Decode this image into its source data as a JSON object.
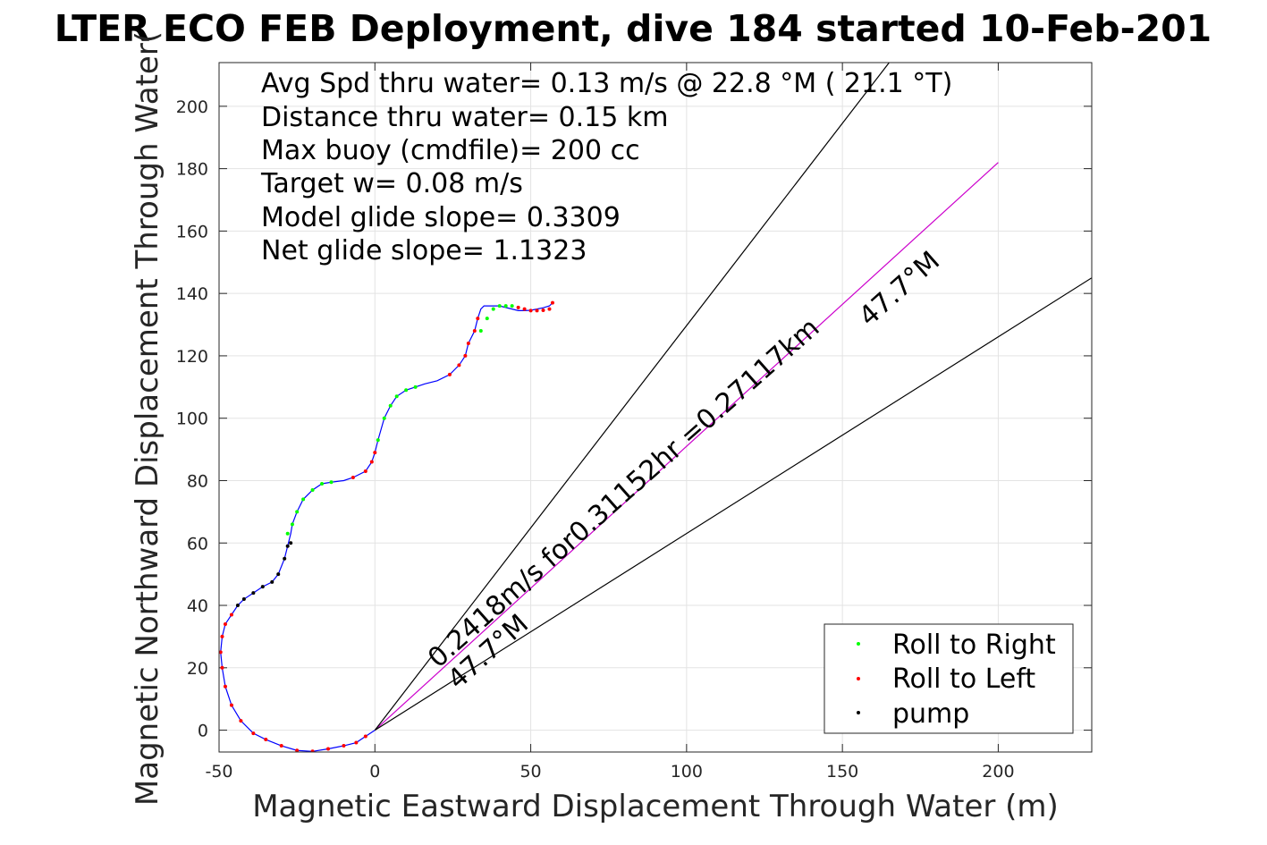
{
  "chart_data": {
    "type": "scatter",
    "title": "LTER ECO FEB Deployment, dive 184 started 10-Feb-201",
    "xlabel": "Magnetic Eastward Displacement Through Water (m)",
    "ylabel": "Magnetic Northward Displacement Through Water(",
    "xlim": [
      -50,
      230
    ],
    "ylim": [
      -7,
      214
    ],
    "xticks": [
      -50,
      0,
      50,
      100,
      150,
      200
    ],
    "yticks": [
      0,
      20,
      40,
      60,
      80,
      100,
      120,
      140,
      160,
      180,
      200
    ],
    "grid": true,
    "legend_position": "bottom-right",
    "annotations": [
      "Avg Spd thru water=  0.13 m/s @  22.8 °M ( 21.1 °T)",
      "Distance thru water=  0.15 km",
      "Max buoy (cmdfile)= 200 cc",
      "Target w= 0.08 m/s",
      "Model glide slope= 0.3309",
      "Net glide slope= 1.1323"
    ],
    "current_label": "0.2418m/s for0.31152hr =0.27117km",
    "heading_label_upper": "47.7°M",
    "heading_label_lower": "47.7°M",
    "track": {
      "x": [
        0,
        -3,
        -6,
        -10,
        -15,
        -20,
        -25,
        -30,
        -35,
        -39,
        -43,
        -46,
        -48,
        -49,
        -49.5,
        -49,
        -48,
        -46,
        -44,
        -42,
        -39,
        -36,
        -33,
        -31,
        -29,
        -28,
        -27,
        -26.5,
        -25,
        -23,
        -20,
        -17,
        -14,
        -10,
        -7,
        -3,
        -1,
        0,
        1,
        3,
        5,
        7,
        10,
        13,
        16,
        20,
        24,
        27,
        29,
        30,
        32,
        33,
        34,
        35,
        36,
        38,
        40,
        42,
        44,
        46,
        48,
        50,
        52,
        54,
        56,
        57
      ],
      "y": [
        0,
        -2,
        -4,
        -5,
        -6,
        -6.8,
        -6.5,
        -5,
        -3,
        -1,
        3,
        8,
        14,
        20,
        25,
        30,
        34,
        37,
        40,
        42,
        44,
        46,
        47.5,
        50,
        55,
        59,
        63,
        66,
        70,
        74,
        77,
        79,
        79.5,
        80,
        81,
        83,
        86,
        89,
        93,
        100,
        104,
        107,
        109,
        110,
        111,
        112,
        114,
        117,
        120,
        124,
        128,
        132,
        135,
        136,
        136,
        136,
        136,
        135.5,
        135,
        134.5,
        134.5,
        134.6,
        135,
        135.4,
        136,
        137
      ],
      "segment_colors": [
        "#0000ff"
      ]
    },
    "marker_series": [
      {
        "name": "Roll to Right",
        "color": "#00ff00",
        "x": [
          -28,
          -26.5,
          -25,
          -23,
          -20,
          -17,
          -14,
          1,
          3,
          5,
          7,
          10,
          13,
          34,
          36,
          38,
          40,
          42,
          44
        ],
        "y": [
          63,
          66,
          70,
          74,
          77,
          79,
          79.5,
          93,
          100,
          104,
          107,
          109,
          110,
          128,
          132,
          135,
          136,
          136,
          136
        ]
      },
      {
        "name": "Roll to Left",
        "color": "#ff0000",
        "x": [
          -3,
          -6,
          -10,
          -15,
          -20,
          -25,
          -30,
          -35,
          -39,
          -43,
          -46,
          -48,
          -49,
          -49.5,
          -49,
          -48,
          -46,
          -7,
          -3,
          -1,
          0,
          24,
          27,
          29,
          30,
          32,
          33,
          46,
          48,
          50,
          52,
          54,
          56,
          57
        ],
        "y": [
          -2,
          -4,
          -5,
          -6,
          -6.8,
          -6.5,
          -5,
          -3,
          -1,
          3,
          8,
          14,
          20,
          25,
          30,
          34,
          37,
          81,
          83,
          86,
          89,
          114,
          117,
          120,
          124,
          128,
          132,
          135.5,
          135,
          134.5,
          134.5,
          134.6,
          135,
          137
        ]
      },
      {
        "name": "pump",
        "color": "#000000",
        "x": [
          -44,
          -42,
          -39,
          -36,
          -33,
          -31,
          -29,
          -28,
          -27
        ],
        "y": [
          40,
          42,
          44,
          46,
          47.5,
          50,
          55,
          59,
          60
        ]
      }
    ],
    "lines": [
      {
        "name": "net",
        "color": "#cc00cc",
        "x": [
          0,
          200
        ],
        "y": [
          0,
          182
        ]
      },
      {
        "name": "bound-upper",
        "color": "#000000",
        "x": [
          0,
          165
        ],
        "y": [
          0,
          214
        ]
      },
      {
        "name": "bound-lower",
        "color": "#000000",
        "x": [
          0,
          230
        ],
        "y": [
          0,
          145
        ]
      }
    ],
    "legend": [
      "Roll to Right",
      "Roll to Left",
      "pump"
    ]
  }
}
